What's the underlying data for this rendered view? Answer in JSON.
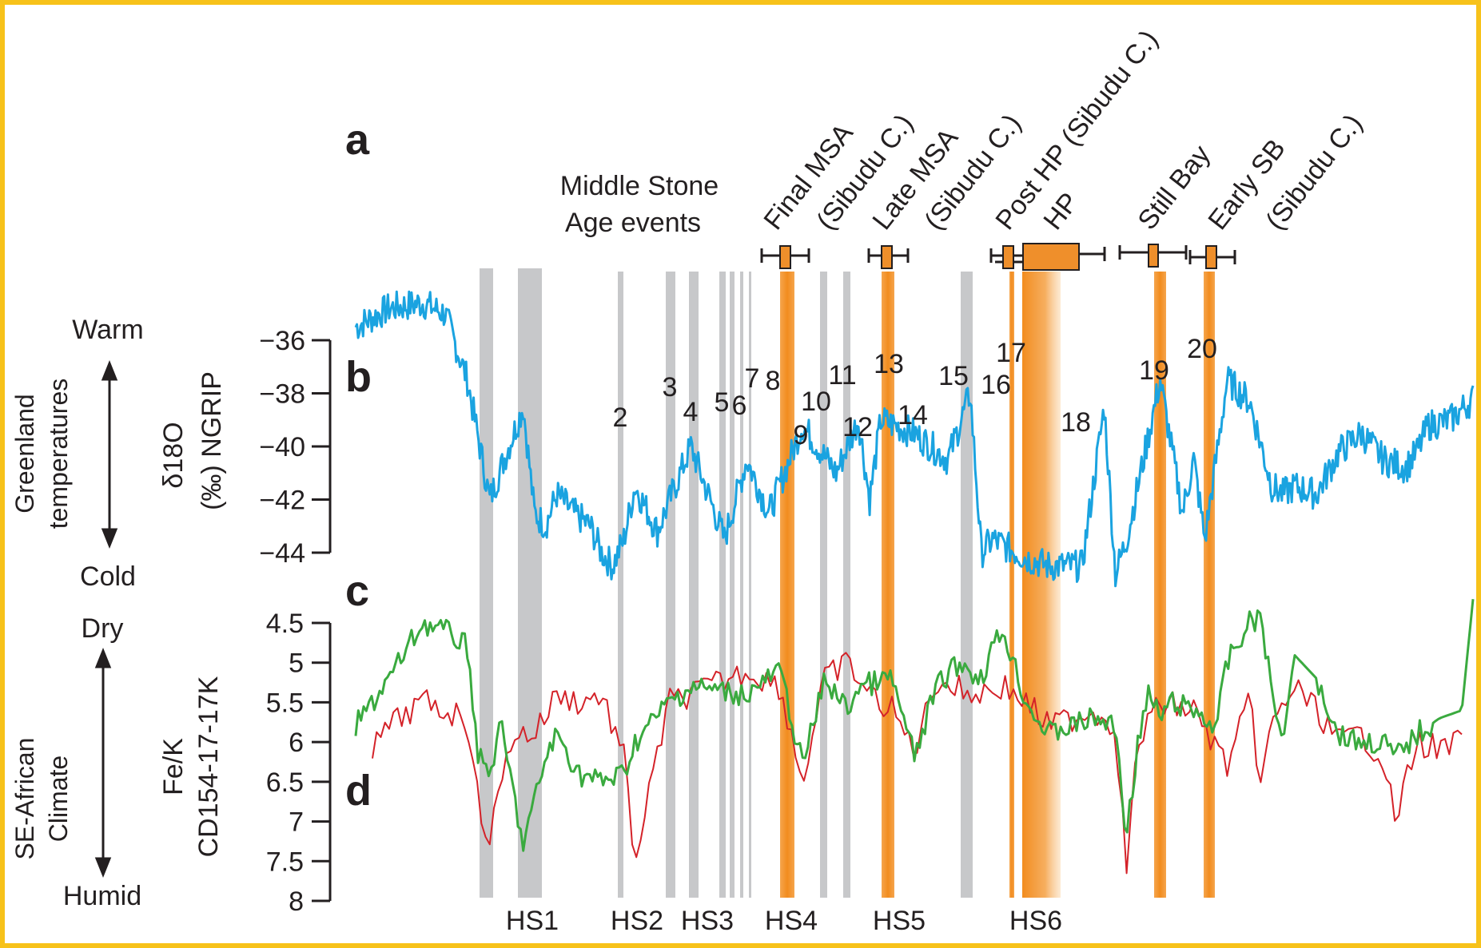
{
  "colors": {
    "frame": "#f7c21a",
    "blue_series": "#1aa3e0",
    "green_series": "#3aaa3f",
    "red_series": "#d42229",
    "orange_band": "#f28c1e",
    "orange_box": "#ef8f2b",
    "gray_band": "#c7c8ca",
    "text": "#231f20"
  },
  "panels": {
    "a": "a",
    "b": "b",
    "c": "c",
    "d": "d"
  },
  "left_labels": {
    "greenland_line1": "Greenland",
    "greenland_line2": "temperatures",
    "warm": "Warm",
    "cold": "Cold",
    "se_african_line1": "SE-African",
    "se_african_line2": "Climate",
    "dry": "Dry",
    "humid": "Humid"
  },
  "middle_stone_age": {
    "title_line1": "Middle Stone",
    "title_line2": "Age events",
    "events": [
      {
        "label": "Final MSA",
        "sub": "(Sibudu C.)"
      },
      {
        "label": "Late MSA",
        "sub": "(Sibudu C.)"
      },
      {
        "label": "Post HP (Sibudu C.)",
        "sub": ""
      },
      {
        "label": "HP",
        "sub": ""
      },
      {
        "label": "Still Bay",
        "sub": ""
      },
      {
        "label": "Early SB",
        "sub": "(Sibudu C.)"
      }
    ]
  },
  "chart_data": [
    {
      "type": "line",
      "panel": "b",
      "ylabel_line1": "δ18O",
      "ylabel_line2": "(‰) NGRIP",
      "y_ticks": [
        "−36",
        "−38",
        "−40",
        "−42",
        "−44"
      ],
      "ylim": [
        -45.5,
        -34.5
      ],
      "y_inverted": false,
      "series": [
        {
          "color": "#1aa3e0",
          "x": [
            0,
            3,
            6,
            8,
            10,
            12,
            15,
            16,
            17,
            18,
            19.5,
            21,
            22,
            23,
            24,
            25,
            27,
            30,
            33,
            35,
            37,
            40,
            43,
            45,
            46,
            47,
            50,
            53,
            55,
            56,
            57,
            60,
            62,
            65,
            67,
            68,
            69,
            72,
            74,
            75,
            76,
            78,
            80,
            82,
            83,
            84,
            86,
            88,
            90,
            92,
            94,
            95,
            96,
            98,
            100
          ],
          "y": [
            -35.5,
            -34.8,
            -34.6,
            -35.0,
            -37.5,
            -42.0,
            -38.5,
            -42.5,
            -43.0,
            -41.8,
            -42.5,
            -43.0,
            -44.0,
            -44.5,
            -43.5,
            -41.5,
            -43.2,
            -40.0,
            -43.5,
            -40.5,
            -42.5,
            -39.2,
            -41.0,
            -39.0,
            -42.0,
            -39.0,
            -39.5,
            -40.5,
            -38.0,
            -44.0,
            -43.5,
            -44.2,
            -44.5,
            -44.5,
            -38.5,
            -44.8,
            -43.5,
            -37.5,
            -42.5,
            -40.5,
            -43.5,
            -37.5,
            -38.3,
            -41.5,
            -41.8,
            -41.5,
            -41.8,
            -40.2,
            -39.5,
            -40.5,
            -40.8,
            -40.2,
            -39.2,
            -39.0,
            -38.2
          ]
        }
      ],
      "peak_labels": [
        "2",
        "3",
        "4",
        "5",
        "6",
        "7",
        "8",
        "9",
        "10",
        "11",
        "12",
        "13",
        "14",
        "15",
        "16",
        "17",
        "18",
        "19",
        "20"
      ]
    },
    {
      "type": "line",
      "panel": "c-d",
      "ylabel_line1": "Fe/K",
      "ylabel_line2": "CD154-17-17K",
      "y_ticks": [
        "4.5",
        "5",
        "5.5",
        "6",
        "6.5",
        "7",
        "7.5",
        "8"
      ],
      "ylim": [
        4.5,
        8
      ],
      "y_inverted": true,
      "series": [
        {
          "color": "#3aaa3f",
          "x": [
            0,
            3,
            6,
            8,
            10,
            11,
            12,
            13,
            15,
            17,
            18,
            20,
            22,
            24,
            25,
            28,
            30,
            35,
            38,
            40,
            42,
            44,
            45,
            48,
            50,
            52,
            54,
            56,
            57,
            58,
            60,
            62,
            64,
            66,
            68,
            69,
            70,
            71,
            72,
            73,
            75,
            77,
            78,
            80,
            81,
            82,
            83,
            84,
            86,
            88,
            90,
            92,
            93,
            95,
            97,
            99,
            100
          ],
          "y": [
            5.8,
            5.2,
            4.5,
            4.6,
            4.8,
            6.2,
            6.4,
            5.8,
            7.3,
            6.2,
            5.9,
            6.4,
            6.5,
            6.4,
            6.0,
            5.5,
            5.3,
            5.4,
            5.1,
            6.3,
            5.2,
            5.6,
            5.3,
            5.2,
            6.2,
            5.3,
            5.0,
            5.2,
            4.8,
            4.6,
            5.5,
            5.9,
            5.8,
            5.7,
            5.8,
            7.2,
            6.0,
            5.4,
            5.7,
            5.5,
            5.6,
            5.8,
            5.0,
            4.5,
            4.4,
            5.4,
            6.0,
            4.9,
            5.2,
            5.9,
            6.0,
            6.0,
            6.2,
            5.9,
            5.7,
            5.6,
            4.2
          ]
        },
        {
          "color": "#d42229",
          "x": [
            1.5,
            3,
            6,
            8,
            10,
            11,
            12,
            14,
            16,
            18,
            20,
            22,
            24,
            25,
            28,
            30,
            35,
            38,
            40,
            42,
            44,
            46,
            48,
            50,
            52,
            55,
            58,
            60,
            62,
            64,
            66,
            68,
            69,
            70,
            72,
            75,
            78,
            80,
            81,
            82,
            84,
            86,
            88,
            90,
            92,
            93,
            95,
            97,
            99
          ],
          "y": [
            6.1,
            5.8,
            5.5,
            5.6,
            5.7,
            6.8,
            7.2,
            5.9,
            5.9,
            5.4,
            5.5,
            5.4,
            6.2,
            7.5,
            5.5,
            5.4,
            5.1,
            5.3,
            6.5,
            5.2,
            5.0,
            5.4,
            5.6,
            6.1,
            5.2,
            5.4,
            5.3,
            5.5,
            5.8,
            5.7,
            5.6,
            5.8,
            7.6,
            6.0,
            5.5,
            5.6,
            6.3,
            5.5,
            6.5,
            5.8,
            5.3,
            5.6,
            6.0,
            5.9,
            6.2,
            7.0,
            6.0,
            6.1,
            6.0
          ]
        }
      ]
    }
  ],
  "heinrich_stadials": [
    "HS1",
    "HS2",
    "HS3",
    "HS4",
    "HS5",
    "HS6"
  ]
}
